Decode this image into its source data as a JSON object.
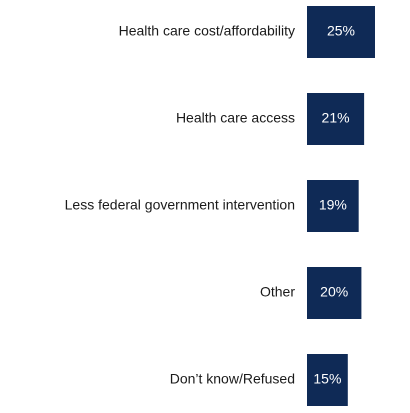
{
  "chart_data": {
    "type": "bar",
    "orientation": "horizontal",
    "categories": [
      "Health care cost/affordability",
      "Health care access",
      "Less federal government intervention",
      "Other",
      "Don’t know/Refused"
    ],
    "values": [
      25,
      21,
      19,
      20,
      15
    ],
    "value_labels": [
      "25%",
      "21%",
      "19%",
      "20%",
      "15%"
    ],
    "bar_color": "#0f2a56",
    "value_label_color": "#ffffff",
    "title": "",
    "xlabel": "",
    "ylabel": "",
    "grid": false,
    "legend": "none"
  }
}
